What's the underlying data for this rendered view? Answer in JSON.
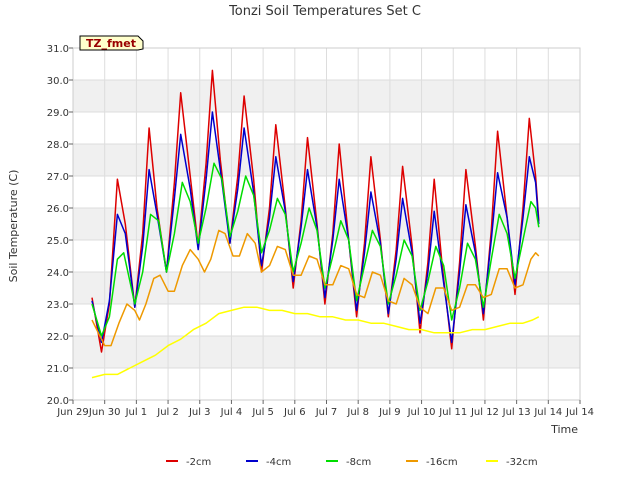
{
  "chart_data": {
    "type": "line",
    "title": "Tonzi Soil Temperatures Set C",
    "xlabel": "Time",
    "ylabel": "Soil Temperature (C)",
    "annotation": "TZ_fmet",
    "xlim": [
      0,
      16
    ],
    "ylim": [
      20.0,
      31.0
    ],
    "yticks": [
      20.0,
      21.0,
      22.0,
      23.0,
      24.0,
      25.0,
      26.0,
      27.0,
      28.0,
      29.0,
      30.0,
      31.0
    ],
    "ytick_labels": [
      "20.0",
      "21.0",
      "22.0",
      "23.0",
      "24.0",
      "25.0",
      "26.0",
      "27.0",
      "28.0",
      "29.0",
      "30.0",
      "31.0"
    ],
    "xticks": [
      0,
      1,
      2,
      3,
      4,
      5,
      6,
      7,
      8,
      9,
      10,
      11,
      12,
      13,
      14,
      15,
      16
    ],
    "xtick_labels": [
      "Jun 29",
      "Jun 30",
      "Jul 1",
      "Jul 2",
      "Jul 3",
      "Jul 4",
      "Jul 5",
      "Jul 6",
      "Jul 7",
      "Jul 8",
      "Jul 9",
      "Jul 10",
      "Jul 11",
      "Jul 12",
      "Jul 13",
      "Jul 14",
      "Jul 14"
    ],
    "grid": true,
    "legend_position": "bottom",
    "series": [
      {
        "name": "-2cm",
        "color": "#dd0000",
        "points": [
          [
            0.6,
            23.2
          ],
          [
            0.9,
            21.5
          ],
          [
            1.15,
            23.0
          ],
          [
            1.4,
            26.9
          ],
          [
            1.65,
            25.5
          ],
          [
            1.95,
            22.9
          ],
          [
            2.2,
            25.2
          ],
          [
            2.4,
            28.5
          ],
          [
            2.65,
            26.0
          ],
          [
            2.95,
            24.0
          ],
          [
            3.2,
            26.8
          ],
          [
            3.4,
            29.6
          ],
          [
            3.7,
            27.0
          ],
          [
            3.95,
            24.8
          ],
          [
            4.2,
            27.4
          ],
          [
            4.4,
            30.3
          ],
          [
            4.65,
            27.5
          ],
          [
            4.95,
            24.9
          ],
          [
            5.2,
            27.0
          ],
          [
            5.4,
            29.5
          ],
          [
            5.7,
            26.9
          ],
          [
            5.95,
            24.0
          ],
          [
            6.2,
            26.0
          ],
          [
            6.4,
            28.6
          ],
          [
            6.7,
            26.0
          ],
          [
            6.95,
            23.5
          ],
          [
            7.2,
            25.6
          ],
          [
            7.4,
            28.2
          ],
          [
            7.7,
            25.5
          ],
          [
            7.95,
            23.0
          ],
          [
            8.2,
            25.2
          ],
          [
            8.4,
            28.0
          ],
          [
            8.7,
            25.0
          ],
          [
            8.95,
            22.6
          ],
          [
            9.2,
            24.9
          ],
          [
            9.4,
            27.6
          ],
          [
            9.7,
            25.0
          ],
          [
            9.95,
            22.6
          ],
          [
            10.2,
            24.7
          ],
          [
            10.4,
            27.3
          ],
          [
            10.7,
            24.8
          ],
          [
            10.95,
            22.1
          ],
          [
            11.2,
            24.3
          ],
          [
            11.4,
            26.9
          ],
          [
            11.65,
            24.2
          ],
          [
            11.95,
            21.6
          ],
          [
            12.2,
            24.3
          ],
          [
            12.4,
            27.2
          ],
          [
            12.7,
            24.8
          ],
          [
            12.95,
            22.5
          ],
          [
            13.2,
            25.3
          ],
          [
            13.4,
            28.4
          ],
          [
            13.7,
            25.7
          ],
          [
            13.95,
            23.3
          ],
          [
            14.2,
            26.0
          ],
          [
            14.4,
            28.8
          ],
          [
            14.6,
            27.0
          ],
          [
            14.7,
            25.6
          ]
        ]
      },
      {
        "name": "-4cm",
        "color": "#0000cc",
        "points": [
          [
            0.6,
            23.1
          ],
          [
            0.9,
            21.8
          ],
          [
            1.15,
            23.1
          ],
          [
            1.4,
            25.8
          ],
          [
            1.65,
            25.2
          ],
          [
            1.95,
            22.9
          ],
          [
            2.2,
            24.8
          ],
          [
            2.4,
            27.2
          ],
          [
            2.65,
            25.8
          ],
          [
            2.95,
            24.0
          ],
          [
            3.2,
            26.3
          ],
          [
            3.4,
            28.3
          ],
          [
            3.7,
            26.6
          ],
          [
            3.95,
            24.7
          ],
          [
            4.2,
            26.9
          ],
          [
            4.4,
            29.0
          ],
          [
            4.65,
            27.2
          ],
          [
            4.95,
            24.9
          ],
          [
            5.2,
            26.6
          ],
          [
            5.4,
            28.5
          ],
          [
            5.7,
            26.5
          ],
          [
            5.95,
            24.2
          ],
          [
            6.2,
            25.7
          ],
          [
            6.4,
            27.6
          ],
          [
            6.7,
            25.9
          ],
          [
            6.95,
            23.7
          ],
          [
            7.2,
            25.4
          ],
          [
            7.4,
            27.2
          ],
          [
            7.7,
            25.4
          ],
          [
            7.95,
            23.2
          ],
          [
            8.2,
            25.0
          ],
          [
            8.4,
            26.9
          ],
          [
            8.7,
            25.0
          ],
          [
            8.95,
            22.8
          ],
          [
            9.2,
            24.6
          ],
          [
            9.4,
            26.5
          ],
          [
            9.7,
            24.9
          ],
          [
            9.95,
            22.7
          ],
          [
            10.2,
            24.4
          ],
          [
            10.4,
            26.3
          ],
          [
            10.7,
            24.6
          ],
          [
            10.95,
            22.4
          ],
          [
            11.2,
            24.0
          ],
          [
            11.4,
            25.9
          ],
          [
            11.65,
            24.0
          ],
          [
            11.95,
            21.8
          ],
          [
            12.2,
            24.0
          ],
          [
            12.4,
            26.1
          ],
          [
            12.7,
            24.6
          ],
          [
            12.95,
            22.7
          ],
          [
            13.2,
            25.0
          ],
          [
            13.4,
            27.1
          ],
          [
            13.7,
            25.7
          ],
          [
            13.95,
            23.6
          ],
          [
            14.2,
            25.7
          ],
          [
            14.4,
            27.6
          ],
          [
            14.6,
            26.8
          ],
          [
            14.7,
            25.5
          ]
        ]
      },
      {
        "name": "-8cm",
        "color": "#00dd00",
        "points": [
          [
            0.6,
            23.0
          ],
          [
            0.9,
            22.0
          ],
          [
            1.15,
            22.6
          ],
          [
            1.4,
            24.4
          ],
          [
            1.6,
            24.6
          ],
          [
            1.95,
            23.0
          ],
          [
            2.2,
            24.0
          ],
          [
            2.45,
            25.8
          ],
          [
            2.7,
            25.6
          ],
          [
            2.95,
            24.0
          ],
          [
            3.2,
            25.2
          ],
          [
            3.45,
            26.8
          ],
          [
            3.7,
            26.2
          ],
          [
            3.95,
            24.9
          ],
          [
            4.2,
            26.0
          ],
          [
            4.45,
            27.4
          ],
          [
            4.7,
            26.9
          ],
          [
            4.95,
            25.1
          ],
          [
            5.2,
            25.9
          ],
          [
            5.45,
            27.0
          ],
          [
            5.7,
            26.4
          ],
          [
            5.95,
            24.6
          ],
          [
            6.2,
            25.3
          ],
          [
            6.45,
            26.3
          ],
          [
            6.7,
            25.8
          ],
          [
            6.95,
            24.0
          ],
          [
            7.2,
            24.9
          ],
          [
            7.45,
            26.0
          ],
          [
            7.7,
            25.3
          ],
          [
            7.95,
            23.5
          ],
          [
            8.2,
            24.5
          ],
          [
            8.45,
            25.6
          ],
          [
            8.7,
            25.0
          ],
          [
            8.95,
            23.1
          ],
          [
            9.2,
            24.2
          ],
          [
            9.45,
            25.3
          ],
          [
            9.7,
            24.8
          ],
          [
            9.95,
            23.0
          ],
          [
            10.2,
            23.9
          ],
          [
            10.45,
            25.0
          ],
          [
            10.7,
            24.5
          ],
          [
            10.95,
            22.8
          ],
          [
            11.2,
            23.7
          ],
          [
            11.45,
            24.8
          ],
          [
            11.7,
            24.2
          ],
          [
            11.95,
            22.5
          ],
          [
            12.2,
            23.5
          ],
          [
            12.45,
            24.9
          ],
          [
            12.7,
            24.4
          ],
          [
            12.95,
            22.9
          ],
          [
            13.2,
            24.4
          ],
          [
            13.45,
            25.8
          ],
          [
            13.7,
            25.2
          ],
          [
            13.95,
            23.8
          ],
          [
            14.2,
            25.0
          ],
          [
            14.45,
            26.2
          ],
          [
            14.6,
            26.0
          ],
          [
            14.7,
            25.4
          ]
        ]
      },
      {
        "name": "-16cm",
        "color": "#ee9900",
        "points": [
          [
            0.6,
            22.5
          ],
          [
            0.8,
            22.1
          ],
          [
            1.0,
            21.7
          ],
          [
            1.2,
            21.7
          ],
          [
            1.45,
            22.4
          ],
          [
            1.7,
            23.0
          ],
          [
            1.95,
            22.8
          ],
          [
            2.1,
            22.5
          ],
          [
            2.3,
            23.0
          ],
          [
            2.55,
            23.8
          ],
          [
            2.75,
            23.9
          ],
          [
            3.0,
            23.4
          ],
          [
            3.2,
            23.4
          ],
          [
            3.45,
            24.2
          ],
          [
            3.7,
            24.7
          ],
          [
            3.95,
            24.4
          ],
          [
            4.15,
            24.0
          ],
          [
            4.35,
            24.4
          ],
          [
            4.6,
            25.3
          ],
          [
            4.8,
            25.2
          ],
          [
            5.05,
            24.5
          ],
          [
            5.25,
            24.5
          ],
          [
            5.5,
            25.2
          ],
          [
            5.75,
            24.9
          ],
          [
            5.95,
            24.0
          ],
          [
            6.2,
            24.2
          ],
          [
            6.45,
            24.8
          ],
          [
            6.7,
            24.7
          ],
          [
            6.95,
            23.9
          ],
          [
            7.2,
            23.9
          ],
          [
            7.45,
            24.5
          ],
          [
            7.7,
            24.4
          ],
          [
            7.95,
            23.6
          ],
          [
            8.2,
            23.6
          ],
          [
            8.45,
            24.2
          ],
          [
            8.7,
            24.1
          ],
          [
            8.95,
            23.3
          ],
          [
            9.2,
            23.2
          ],
          [
            9.45,
            24.0
          ],
          [
            9.7,
            23.9
          ],
          [
            9.95,
            23.1
          ],
          [
            10.2,
            23.0
          ],
          [
            10.45,
            23.8
          ],
          [
            10.7,
            23.6
          ],
          [
            10.95,
            22.9
          ],
          [
            11.2,
            22.7
          ],
          [
            11.45,
            23.5
          ],
          [
            11.7,
            23.5
          ],
          [
            11.95,
            22.8
          ],
          [
            12.2,
            22.9
          ],
          [
            12.45,
            23.6
          ],
          [
            12.7,
            23.6
          ],
          [
            12.95,
            23.2
          ],
          [
            13.2,
            23.3
          ],
          [
            13.45,
            24.1
          ],
          [
            13.7,
            24.1
          ],
          [
            13.95,
            23.5
          ],
          [
            14.2,
            23.6
          ],
          [
            14.45,
            24.4
          ],
          [
            14.6,
            24.6
          ],
          [
            14.7,
            24.5
          ]
        ]
      },
      {
        "name": "-32cm",
        "color": "#ffff00",
        "points": [
          [
            0.6,
            20.7
          ],
          [
            1.0,
            20.8
          ],
          [
            1.4,
            20.8
          ],
          [
            1.8,
            21.0
          ],
          [
            2.2,
            21.2
          ],
          [
            2.6,
            21.4
          ],
          [
            3.0,
            21.7
          ],
          [
            3.4,
            21.9
          ],
          [
            3.8,
            22.2
          ],
          [
            4.2,
            22.4
          ],
          [
            4.6,
            22.7
          ],
          [
            5.0,
            22.8
          ],
          [
            5.4,
            22.9
          ],
          [
            5.8,
            22.9
          ],
          [
            6.2,
            22.8
          ],
          [
            6.6,
            22.8
          ],
          [
            7.0,
            22.7
          ],
          [
            7.4,
            22.7
          ],
          [
            7.8,
            22.6
          ],
          [
            8.2,
            22.6
          ],
          [
            8.6,
            22.5
          ],
          [
            9.0,
            22.5
          ],
          [
            9.4,
            22.4
          ],
          [
            9.8,
            22.4
          ],
          [
            10.2,
            22.3
          ],
          [
            10.6,
            22.2
          ],
          [
            11.0,
            22.2
          ],
          [
            11.4,
            22.1
          ],
          [
            11.8,
            22.1
          ],
          [
            12.2,
            22.1
          ],
          [
            12.6,
            22.2
          ],
          [
            13.0,
            22.2
          ],
          [
            13.4,
            22.3
          ],
          [
            13.8,
            22.4
          ],
          [
            14.2,
            22.4
          ],
          [
            14.5,
            22.5
          ],
          [
            14.7,
            22.6
          ]
        ]
      }
    ]
  }
}
